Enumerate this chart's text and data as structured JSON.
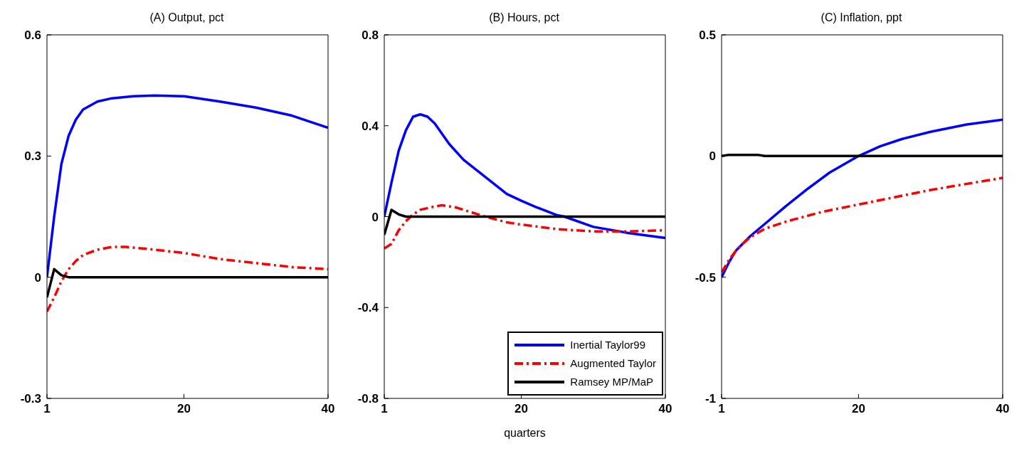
{
  "chart_data": [
    {
      "type": "line",
      "title": "(A) Output, pct",
      "xlim": [
        1,
        40
      ],
      "xticks": [
        1,
        20,
        40
      ],
      "ylim": [
        -0.3,
        0.6
      ],
      "yticks": [
        -0.3,
        0,
        0.3,
        0.6
      ],
      "grid": false,
      "legend": false,
      "series": [
        {
          "color": "#0000ff",
          "line_style": "solid",
          "x": [
            1,
            2,
            3,
            4,
            5,
            6,
            8,
            10,
            13,
            16,
            20,
            25,
            30,
            35,
            40
          ],
          "values": [
            0,
            0.15,
            0.28,
            0.35,
            0.39,
            0.415,
            0.435,
            0.443,
            0.448,
            0.45,
            0.448,
            0.435,
            0.42,
            0.4,
            0.37
          ]
        },
        {
          "color": "#ff0000",
          "line_style": "dashed",
          "x": [
            1,
            2,
            3,
            4,
            5,
            6,
            8,
            10,
            12,
            15,
            20,
            25,
            30,
            35,
            40
          ],
          "values": [
            -0.085,
            -0.05,
            -0.01,
            0.02,
            0.04,
            0.055,
            0.068,
            0.075,
            0.075,
            0.07,
            0.06,
            0.045,
            0.035,
            0.025,
            0.02
          ]
        },
        {
          "color": "#000000",
          "line_style": "solid",
          "x": [
            1,
            2,
            3,
            4,
            40
          ],
          "values": [
            -0.05,
            0.02,
            0.005,
            0,
            0
          ]
        }
      ]
    },
    {
      "type": "line",
      "title": "(B) Hours, pct",
      "xlabel": "quarters",
      "xlim": [
        1,
        40
      ],
      "xticks": [
        1,
        20,
        40
      ],
      "ylim": [
        -0.8,
        0.8
      ],
      "yticks": [
        -0.8,
        -0.4,
        0,
        0.4,
        0.8
      ],
      "grid": false,
      "legend": "bottom right",
      "series": [
        {
          "name": "Inertial Taylor99",
          "color": "#0000ff",
          "line_style": "solid",
          "x": [
            1,
            2,
            3,
            4,
            5,
            6,
            7,
            8,
            10,
            12,
            14,
            16,
            18,
            20,
            22,
            25,
            26,
            30,
            35,
            40
          ],
          "values": [
            0,
            0.15,
            0.29,
            0.38,
            0.44,
            0.45,
            0.44,
            0.41,
            0.32,
            0.25,
            0.2,
            0.15,
            0.1,
            0.07,
            0.043,
            0.006,
            0,
            -0.045,
            -0.073,
            -0.094
          ]
        },
        {
          "name": "Augmented Taylor",
          "color": "#ff0000",
          "line_style": "dashed",
          "x": [
            1,
            2,
            3,
            4,
            5,
            6,
            8,
            9,
            11,
            13,
            15,
            18,
            20,
            25,
            30,
            35,
            40
          ],
          "values": [
            -0.14,
            -0.12,
            -0.06,
            -0.02,
            0.01,
            0.03,
            0.045,
            0.05,
            0.04,
            0.02,
            0,
            -0.025,
            -0.035,
            -0.055,
            -0.065,
            -0.065,
            -0.06
          ]
        },
        {
          "name": "Ramsey MP/MaP",
          "color": "#000000",
          "line_style": "solid",
          "x": [
            1,
            2,
            3,
            4,
            40
          ],
          "values": [
            -0.08,
            0.03,
            0.01,
            0,
            0
          ]
        }
      ]
    },
    {
      "type": "line",
      "title": "(C) Inflation, ppt",
      "xlim": [
        1,
        40
      ],
      "xticks": [
        1,
        20,
        40
      ],
      "ylim": [
        -1,
        0.5
      ],
      "yticks": [
        -1,
        -0.5,
        0,
        0.5
      ],
      "grid": false,
      "legend": false,
      "series": [
        {
          "color": "#0000ff",
          "line_style": "solid",
          "x": [
            1,
            2,
            3,
            4,
            5,
            7,
            10,
            13,
            16,
            20,
            23,
            26,
            30,
            35,
            40
          ],
          "values": [
            -0.5,
            -0.44,
            -0.39,
            -0.36,
            -0.33,
            -0.28,
            -0.205,
            -0.134,
            -0.068,
            0,
            0.04,
            0.07,
            0.1,
            0.13,
            0.15
          ]
        },
        {
          "color": "#ff0000",
          "line_style": "dashed",
          "x": [
            1,
            2,
            3,
            4,
            5,
            7,
            10,
            15,
            20,
            25,
            30,
            35,
            40
          ],
          "values": [
            -0.48,
            -0.43,
            -0.39,
            -0.36,
            -0.335,
            -0.3,
            -0.27,
            -0.23,
            -0.2,
            -0.17,
            -0.14,
            -0.115,
            -0.09
          ]
        },
        {
          "color": "#000000",
          "line_style": "solid",
          "x": [
            1,
            2,
            6,
            7,
            40
          ],
          "values": [
            0,
            0.005,
            0.005,
            0,
            0
          ]
        }
      ]
    }
  ]
}
